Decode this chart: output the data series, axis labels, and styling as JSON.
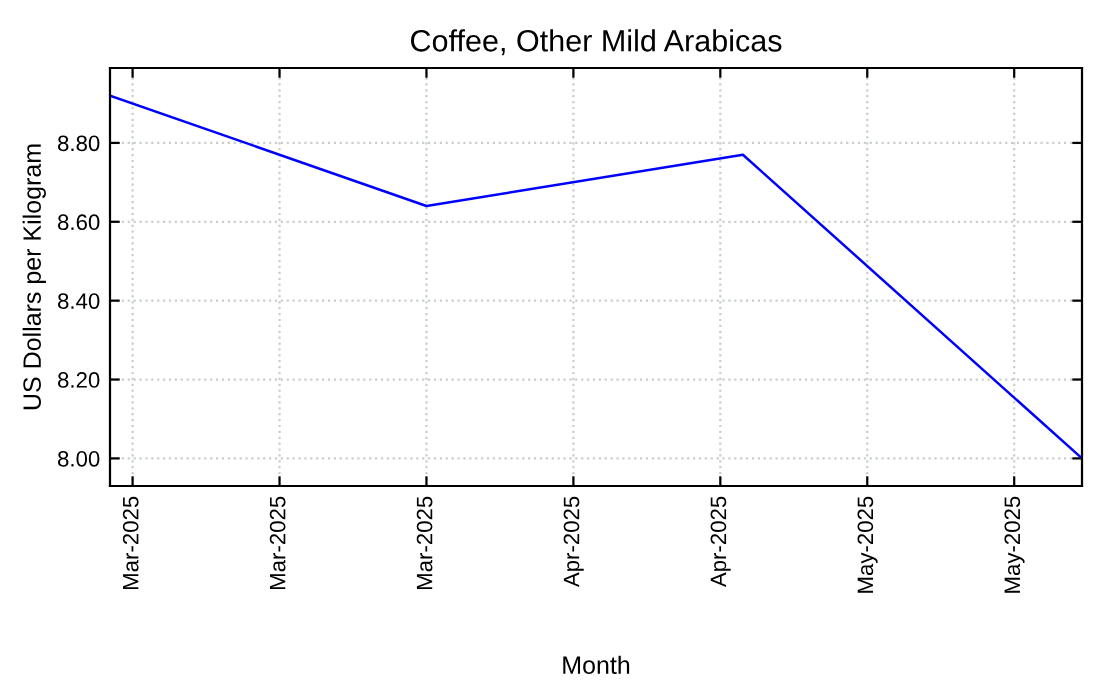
{
  "chart_data": {
    "type": "line",
    "title": "Coffee, Other Mild Arabicas",
    "xlabel": "Month",
    "ylabel": "US Dollars per Kilogram",
    "x": [
      "2025-02-27",
      "2025-03-27",
      "2025-04-24",
      "2025-05-24"
    ],
    "series": [
      {
        "color": "#0000ff",
        "values": [
          8.92,
          8.64,
          8.77,
          8.0
        ]
      }
    ],
    "xlim": [
      "2025-02-27",
      "2025-05-24"
    ],
    "xticks": [
      {
        "value": "2025-03-01",
        "label": "Mar-2025"
      },
      {
        "value": "2025-03-14",
        "label": "Mar-2025"
      },
      {
        "value": "2025-03-27",
        "label": "Mar-2025"
      },
      {
        "value": "2025-04-09",
        "label": "Apr-2025"
      },
      {
        "value": "2025-04-22",
        "label": "Apr-2025"
      },
      {
        "value": "2025-05-05",
        "label": "May-2025"
      },
      {
        "value": "2025-05-18",
        "label": "May-2025"
      }
    ],
    "ylim": [
      7.93,
      8.99
    ],
    "yticks": [
      {
        "value": 8.0,
        "label": "8.00"
      },
      {
        "value": 8.2,
        "label": "8.20"
      },
      {
        "value": 8.4,
        "label": "8.40"
      },
      {
        "value": 8.6,
        "label": "8.60"
      },
      {
        "value": 8.8,
        "label": "8.80"
      }
    ],
    "grid": true,
    "marker": "none",
    "line_style": "solid"
  }
}
